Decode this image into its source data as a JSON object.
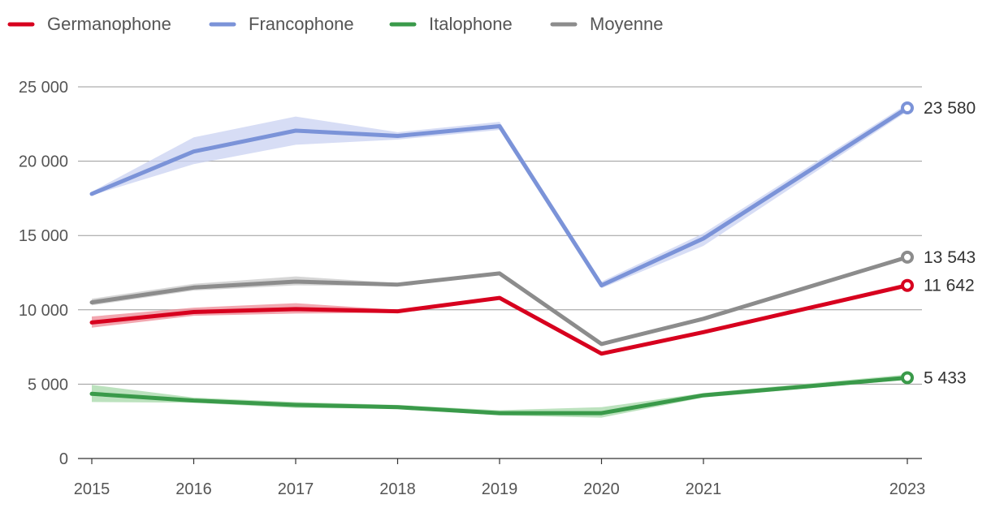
{
  "chart_data": {
    "type": "line",
    "x": [
      2015,
      2016,
      2017,
      2018,
      2019,
      2020,
      2021,
      2023
    ],
    "xlim": [
      2015,
      2023
    ],
    "ylim": [
      0,
      25000
    ],
    "yticks": [
      0,
      5000,
      10000,
      15000,
      20000,
      25000
    ],
    "ytick_labels": [
      "0",
      "5 000",
      "10 000",
      "15 000",
      "20 000",
      "25 000"
    ],
    "xtick_labels": [
      "2015",
      "2016",
      "2017",
      "2018",
      "2019",
      "2020",
      "2021",
      "2023"
    ],
    "grid": true,
    "legend_position": "top-left",
    "series": [
      {
        "name": "Germanophone",
        "color": "#d7001e",
        "band_color": "#ee8a96",
        "values": [
          9150,
          9850,
          10050,
          9900,
          10800,
          7050,
          8500,
          11642
        ],
        "lower": [
          8800,
          9600,
          9750,
          9800,
          10700,
          6950,
          8400,
          11500
        ],
        "upper": [
          9550,
          10150,
          10450,
          10000,
          10900,
          7150,
          8600,
          11800
        ],
        "end_label": "11 642"
      },
      {
        "name": "Francophone",
        "color": "#7b93d8",
        "band_color": "#c9d2f2",
        "values": [
          17800,
          20650,
          22050,
          21700,
          22350,
          11650,
          14800,
          23580
        ],
        "lower": [
          17700,
          19800,
          21100,
          21450,
          22100,
          11450,
          14300,
          23350
        ],
        "upper": [
          17950,
          21600,
          23000,
          21950,
          22650,
          11900,
          15150,
          23850
        ],
        "end_label": "23 580"
      },
      {
        "name": "Italophone",
        "color": "#3a9a4a",
        "band_color": "#a6d8a8",
        "values": [
          4350,
          3900,
          3600,
          3450,
          3050,
          3050,
          4250,
          5433
        ],
        "lower": [
          3800,
          3750,
          3400,
          3350,
          2900,
          2750,
          4100,
          5300
        ],
        "upper": [
          4950,
          4100,
          3800,
          3600,
          3250,
          3450,
          4400,
          5650
        ],
        "end_label": "5 433"
      },
      {
        "name": "Moyenne",
        "color": "#8c8c8c",
        "band_color": "#c8c8c8",
        "values": [
          10500,
          11500,
          11900,
          11700,
          12450,
          7700,
          9400,
          13543
        ],
        "lower": [
          10300,
          11300,
          11650,
          11600,
          12350,
          7600,
          9300,
          13400
        ],
        "upper": [
          10750,
          11750,
          12250,
          11800,
          12550,
          7800,
          9500,
          13650
        ],
        "end_label": "13 543"
      }
    ]
  }
}
